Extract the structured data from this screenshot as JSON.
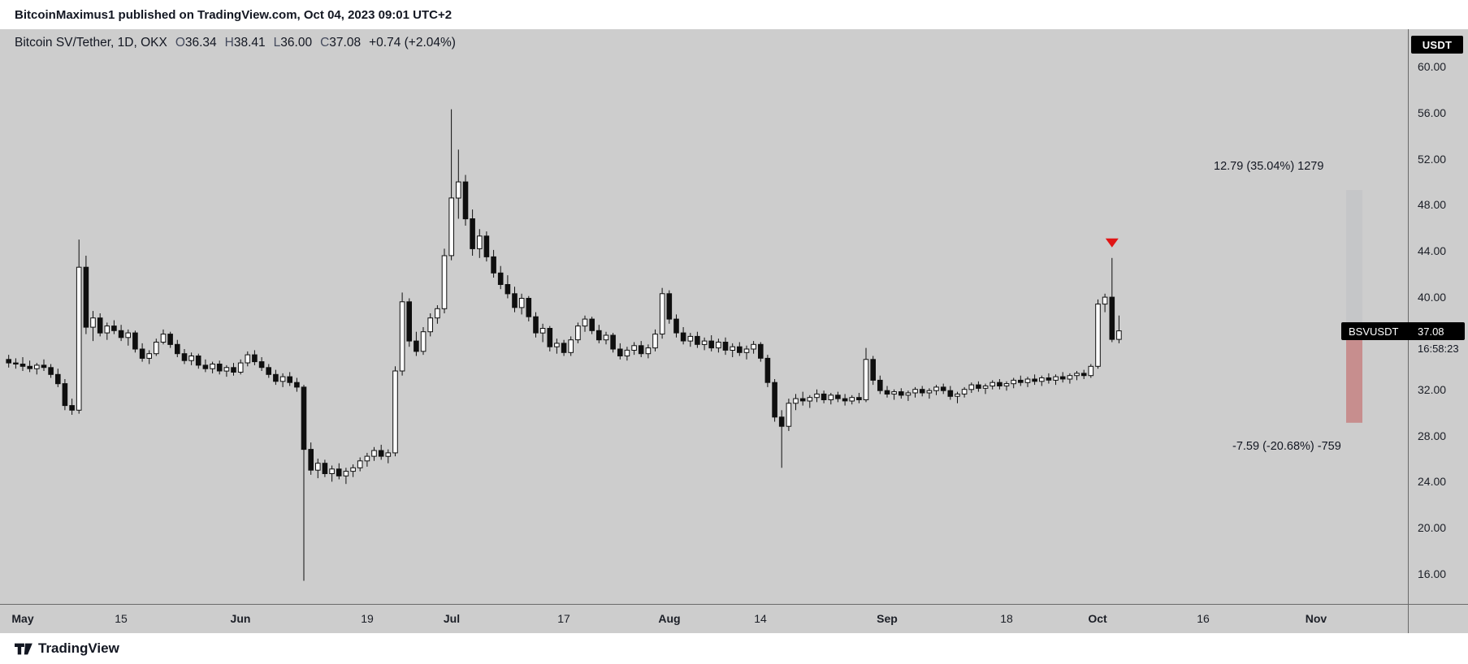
{
  "attribution": {
    "text": "BitcoinMaximus1 published on TradingView.com, Oct 04, 2023 09:01 UTC+2"
  },
  "header": {
    "symbol_title": "Bitcoin SV/Tether, 1D, OKX",
    "ohlc": {
      "o_label": "O",
      "o_value": "36.34",
      "h_label": "H",
      "h_value": "38.41",
      "l_label": "L",
      "l_value": "36.00",
      "c_label": "C",
      "c_value": "37.08",
      "change": "+0.74 (+2.04%)"
    }
  },
  "price_axis": {
    "currency_badge": "USDT",
    "last_price_label": {
      "symbol": "BSVUSDT",
      "price_text": "37.08",
      "price_value": 37.08,
      "countdown": "16:58:23"
    }
  },
  "annotations": {
    "upper": "12.79 (35.04%) 1279",
    "lower": "-7.59 (-20.68%) -759"
  },
  "footer": {
    "brand": "TradingView"
  },
  "colors": {
    "chart_bg": "#cdcdcd",
    "candle_up_fill": "#ffffff",
    "candle_down_fill": "#0f0f0f",
    "candle_stroke": "#0f0f0f",
    "marker_red": "#e01515",
    "axis_line": "#6a6a6a",
    "text_dark": "#131722",
    "badge_bg": "#000000",
    "badge_text": "#ffffff",
    "range_down_fill": "rgba(193,80,80,0.5)",
    "range_up_fill": "rgba(125,135,160,0.10)"
  },
  "chart_data": {
    "type": "candlestick",
    "title": "Bitcoin SV/Tether, 1D, OKX",
    "pair": "BSV/USDT",
    "symbol": "BSVUSDT",
    "exchange": "OKX",
    "interval": "1D",
    "ylim": [
      13.4,
      63.2
    ],
    "grid": false,
    "y_axis": {
      "ticks": [
        {
          "value": 60,
          "label": "60.00"
        },
        {
          "value": 56,
          "label": "56.00"
        },
        {
          "value": 52,
          "label": "52.00"
        },
        {
          "value": 48,
          "label": "48.00"
        },
        {
          "value": 44,
          "label": "44.00"
        },
        {
          "value": 40,
          "label": "40.00"
        },
        {
          "value": 32,
          "label": "32.00"
        },
        {
          "value": 28,
          "label": "28.00"
        },
        {
          "value": 24,
          "label": "24.00"
        },
        {
          "value": 20,
          "label": "20.00"
        },
        {
          "value": 16,
          "label": "16.00"
        }
      ]
    },
    "x_axis": {
      "ticks": [
        {
          "day": 0,
          "label": "May",
          "major": true
        },
        {
          "day": 14,
          "label": "15",
          "major": false
        },
        {
          "day": 31,
          "label": "Jun",
          "major": true
        },
        {
          "day": 49,
          "label": "19",
          "major": false
        },
        {
          "day": 61,
          "label": "Jul",
          "major": true
        },
        {
          "day": 77,
          "label": "17",
          "major": false
        },
        {
          "day": 92,
          "label": "Aug",
          "major": true
        },
        {
          "day": 105,
          "label": "14",
          "major": false
        },
        {
          "day": 123,
          "label": "Sep",
          "major": true
        },
        {
          "day": 140,
          "label": "18",
          "major": false
        },
        {
          "day": 153,
          "label": "Oct",
          "major": true
        },
        {
          "day": 168,
          "label": "16",
          "major": false
        },
        {
          "day": 184,
          "label": "Nov",
          "major": true
        }
      ]
    },
    "first_candle_day_offset": -2,
    "last_bar": {
      "open": 36.34,
      "high": 38.41,
      "low": 36.0,
      "close": 37.08,
      "change_text": "+0.74 (+2.04%)"
    },
    "marker": {
      "shape": "triangle-down",
      "candle_index": 157,
      "color_key": "marker_red"
    },
    "ranges": [
      {
        "name": "projected-up-range",
        "price_from": 36.5,
        "price_to": 49.29,
        "x": 1657,
        "width": 20,
        "fill_key": "range_up_fill",
        "label": "12.79 (35.04%) 1279"
      },
      {
        "name": "measured-down-range",
        "price_from": 36.7,
        "price_to": 29.11,
        "x": 1657,
        "width": 20,
        "fill_key": "range_down_fill",
        "label": "-7.59 (-20.68%) -759"
      }
    ],
    "candles": [
      [
        34.6,
        35.0,
        33.9,
        34.3
      ],
      [
        34.3,
        34.7,
        33.8,
        34.2
      ],
      [
        34.2,
        34.8,
        33.6,
        34.0
      ],
      [
        34.0,
        34.5,
        33.5,
        33.8
      ],
      [
        33.8,
        34.3,
        33.3,
        34.1
      ],
      [
        34.1,
        34.6,
        33.6,
        33.9
      ],
      [
        33.9,
        34.2,
        33.0,
        33.3
      ],
      [
        33.3,
        33.8,
        32.2,
        32.5
      ],
      [
        32.5,
        32.9,
        30.2,
        30.6
      ],
      [
        30.6,
        31.2,
        29.8,
        30.2
      ],
      [
        30.2,
        45.0,
        29.9,
        42.6
      ],
      [
        42.6,
        43.6,
        36.8,
        37.4
      ],
      [
        37.4,
        38.8,
        36.2,
        38.2
      ],
      [
        38.2,
        38.6,
        36.6,
        36.9
      ],
      [
        36.9,
        37.8,
        36.3,
        37.5
      ],
      [
        37.5,
        38.0,
        36.8,
        37.1
      ],
      [
        37.1,
        37.6,
        36.2,
        36.5
      ],
      [
        36.5,
        37.2,
        35.8,
        36.9
      ],
      [
        36.9,
        37.1,
        35.2,
        35.5
      ],
      [
        35.5,
        36.0,
        34.4,
        34.7
      ],
      [
        34.7,
        35.4,
        34.2,
        35.1
      ],
      [
        35.1,
        36.4,
        34.9,
        36.1
      ],
      [
        36.1,
        37.2,
        35.9,
        36.8
      ],
      [
        36.8,
        37.0,
        35.6,
        35.9
      ],
      [
        35.9,
        36.3,
        34.8,
        35.1
      ],
      [
        35.1,
        35.5,
        34.2,
        34.5
      ],
      [
        34.5,
        35.2,
        34.1,
        34.9
      ],
      [
        34.9,
        35.1,
        33.8,
        34.1
      ],
      [
        34.1,
        34.6,
        33.5,
        33.8
      ],
      [
        33.8,
        34.4,
        33.4,
        34.2
      ],
      [
        34.2,
        34.5,
        33.3,
        33.6
      ],
      [
        33.6,
        34.1,
        33.1,
        33.9
      ],
      [
        33.9,
        34.3,
        33.2,
        33.5
      ],
      [
        33.5,
        34.6,
        33.3,
        34.3
      ],
      [
        34.3,
        35.3,
        34.0,
        35.0
      ],
      [
        35.0,
        35.4,
        34.1,
        34.4
      ],
      [
        34.4,
        34.8,
        33.6,
        33.9
      ],
      [
        33.9,
        34.2,
        33.0,
        33.3
      ],
      [
        33.3,
        33.7,
        32.4,
        32.7
      ],
      [
        32.7,
        33.4,
        32.2,
        33.1
      ],
      [
        33.1,
        33.5,
        32.3,
        32.6
      ],
      [
        32.6,
        33.0,
        31.8,
        32.2
      ],
      [
        32.2,
        32.4,
        15.4,
        26.8
      ],
      [
        26.8,
        27.4,
        24.6,
        25.0
      ],
      [
        25.0,
        26.0,
        24.3,
        25.6
      ],
      [
        25.6,
        25.9,
        24.4,
        24.7
      ],
      [
        24.7,
        25.4,
        24.0,
        25.1
      ],
      [
        25.1,
        25.6,
        24.2,
        24.5
      ],
      [
        24.5,
        25.2,
        23.8,
        24.9
      ],
      [
        24.9,
        25.5,
        24.4,
        25.2
      ],
      [
        25.2,
        26.1,
        24.9,
        25.8
      ],
      [
        25.8,
        26.5,
        25.3,
        26.2
      ],
      [
        26.2,
        27.0,
        25.8,
        26.7
      ],
      [
        26.7,
        27.2,
        25.9,
        26.2
      ],
      [
        26.2,
        26.8,
        25.6,
        26.5
      ],
      [
        26.5,
        34.0,
        26.2,
        33.6
      ],
      [
        33.6,
        40.4,
        33.2,
        39.6
      ],
      [
        39.6,
        39.9,
        35.7,
        36.2
      ],
      [
        36.2,
        37.0,
        34.9,
        35.3
      ],
      [
        35.3,
        37.4,
        35.0,
        37.0
      ],
      [
        37.0,
        38.6,
        36.6,
        38.2
      ],
      [
        38.2,
        39.3,
        37.7,
        39.0
      ],
      [
        39.0,
        44.2,
        38.6,
        43.6
      ],
      [
        43.6,
        56.3,
        43.2,
        48.6
      ],
      [
        48.6,
        52.8,
        46.8,
        50.0
      ],
      [
        50.0,
        50.6,
        46.2,
        46.8
      ],
      [
        46.8,
        47.6,
        43.6,
        44.2
      ],
      [
        44.2,
        45.9,
        43.4,
        45.3
      ],
      [
        45.3,
        45.7,
        43.1,
        43.5
      ],
      [
        43.5,
        44.1,
        41.7,
        42.1
      ],
      [
        42.1,
        42.7,
        40.7,
        41.1
      ],
      [
        41.1,
        41.9,
        39.9,
        40.3
      ],
      [
        40.3,
        40.9,
        38.7,
        39.1
      ],
      [
        39.1,
        40.3,
        38.5,
        39.9
      ],
      [
        39.9,
        40.1,
        37.9,
        38.3
      ],
      [
        38.3,
        38.7,
        36.5,
        36.9
      ],
      [
        36.9,
        37.7,
        36.1,
        37.3
      ],
      [
        37.3,
        37.5,
        35.3,
        35.7
      ],
      [
        35.7,
        36.4,
        35.1,
        36.0
      ],
      [
        36.0,
        36.3,
        34.9,
        35.2
      ],
      [
        35.2,
        36.6,
        34.9,
        36.3
      ],
      [
        36.3,
        37.8,
        36.0,
        37.5
      ],
      [
        37.5,
        38.4,
        37.0,
        38.1
      ],
      [
        38.1,
        38.3,
        36.8,
        37.1
      ],
      [
        37.1,
        37.6,
        36.0,
        36.3
      ],
      [
        36.3,
        37.0,
        35.9,
        36.7
      ],
      [
        36.7,
        36.9,
        35.2,
        35.5
      ],
      [
        35.5,
        36.0,
        34.6,
        34.9
      ],
      [
        34.9,
        35.7,
        34.5,
        35.4
      ],
      [
        35.4,
        36.1,
        35.0,
        35.8
      ],
      [
        35.8,
        36.2,
        34.8,
        35.1
      ],
      [
        35.1,
        35.9,
        34.7,
        35.6
      ],
      [
        35.6,
        37.2,
        35.3,
        36.8
      ],
      [
        36.8,
        40.8,
        36.4,
        40.3
      ],
      [
        40.3,
        40.6,
        37.7,
        38.1
      ],
      [
        38.1,
        38.5,
        36.5,
        36.9
      ],
      [
        36.9,
        37.4,
        35.9,
        36.2
      ],
      [
        36.2,
        36.9,
        35.7,
        36.6
      ],
      [
        36.6,
        37.0,
        35.6,
        35.9
      ],
      [
        35.9,
        36.5,
        35.4,
        36.2
      ],
      [
        36.2,
        36.7,
        35.3,
        35.6
      ],
      [
        35.6,
        36.4,
        35.2,
        36.1
      ],
      [
        36.1,
        36.5,
        35.0,
        35.4
      ],
      [
        35.4,
        36.0,
        34.8,
        35.7
      ],
      [
        35.7,
        36.1,
        34.9,
        35.2
      ],
      [
        35.2,
        35.8,
        34.6,
        35.5
      ],
      [
        35.5,
        36.2,
        35.1,
        35.9
      ],
      [
        35.9,
        36.1,
        34.4,
        34.7
      ],
      [
        34.7,
        35.0,
        32.2,
        32.6
      ],
      [
        32.6,
        32.9,
        29.2,
        29.6
      ],
      [
        29.6,
        30.2,
        25.2,
        28.8
      ],
      [
        28.8,
        31.2,
        28.4,
        30.8
      ],
      [
        30.8,
        31.6,
        30.2,
        31.2
      ],
      [
        31.2,
        31.8,
        30.6,
        31.0
      ],
      [
        31.0,
        31.5,
        30.4,
        31.3
      ],
      [
        31.3,
        32.0,
        30.9,
        31.6
      ],
      [
        31.6,
        31.9,
        30.8,
        31.1
      ],
      [
        31.1,
        31.7,
        30.7,
        31.5
      ],
      [
        31.5,
        31.8,
        30.9,
        31.2
      ],
      [
        31.2,
        31.6,
        30.6,
        31.0
      ],
      [
        31.0,
        31.5,
        30.7,
        31.3
      ],
      [
        31.3,
        31.7,
        30.8,
        31.1
      ],
      [
        31.1,
        35.6,
        30.9,
        34.6
      ],
      [
        34.6,
        34.9,
        32.4,
        32.8
      ],
      [
        32.8,
        33.2,
        31.6,
        31.9
      ],
      [
        31.9,
        32.3,
        31.3,
        31.6
      ],
      [
        31.6,
        32.0,
        31.1,
        31.8
      ],
      [
        31.8,
        32.1,
        31.2,
        31.5
      ],
      [
        31.5,
        31.9,
        31.0,
        31.7
      ],
      [
        31.7,
        32.2,
        31.3,
        32.0
      ],
      [
        32.0,
        32.3,
        31.4,
        31.7
      ],
      [
        31.7,
        32.1,
        31.2,
        31.9
      ],
      [
        31.9,
        32.4,
        31.5,
        32.2
      ],
      [
        32.2,
        32.5,
        31.6,
        31.9
      ],
      [
        31.9,
        32.3,
        31.1,
        31.4
      ],
      [
        31.4,
        31.8,
        30.8,
        31.6
      ],
      [
        31.6,
        32.2,
        31.3,
        32.0
      ],
      [
        32.0,
        32.6,
        31.7,
        32.4
      ],
      [
        32.4,
        32.7,
        31.8,
        32.1
      ],
      [
        32.1,
        32.5,
        31.6,
        32.3
      ],
      [
        32.3,
        32.8,
        32.0,
        32.6
      ],
      [
        32.6,
        32.9,
        32.0,
        32.3
      ],
      [
        32.3,
        32.7,
        31.9,
        32.5
      ],
      [
        32.5,
        33.0,
        32.1,
        32.8
      ],
      [
        32.8,
        33.2,
        32.3,
        32.6
      ],
      [
        32.6,
        33.1,
        32.2,
        32.9
      ],
      [
        32.9,
        33.3,
        32.4,
        32.7
      ],
      [
        32.7,
        33.2,
        32.3,
        33.0
      ],
      [
        33.0,
        33.4,
        32.5,
        32.8
      ],
      [
        32.8,
        33.3,
        32.4,
        33.1
      ],
      [
        33.1,
        33.5,
        32.6,
        32.9
      ],
      [
        32.9,
        33.4,
        32.5,
        33.2
      ],
      [
        33.2,
        33.6,
        32.8,
        33.4
      ],
      [
        33.4,
        33.7,
        32.9,
        33.2
      ],
      [
        33.2,
        34.2,
        33.0,
        34.0
      ],
      [
        34.0,
        39.8,
        33.8,
        39.4
      ],
      [
        39.4,
        40.3,
        38.7,
        40.0
      ],
      [
        40.0,
        43.4,
        36.1,
        36.34
      ],
      [
        36.34,
        38.41,
        36.0,
        37.08
      ]
    ]
  }
}
